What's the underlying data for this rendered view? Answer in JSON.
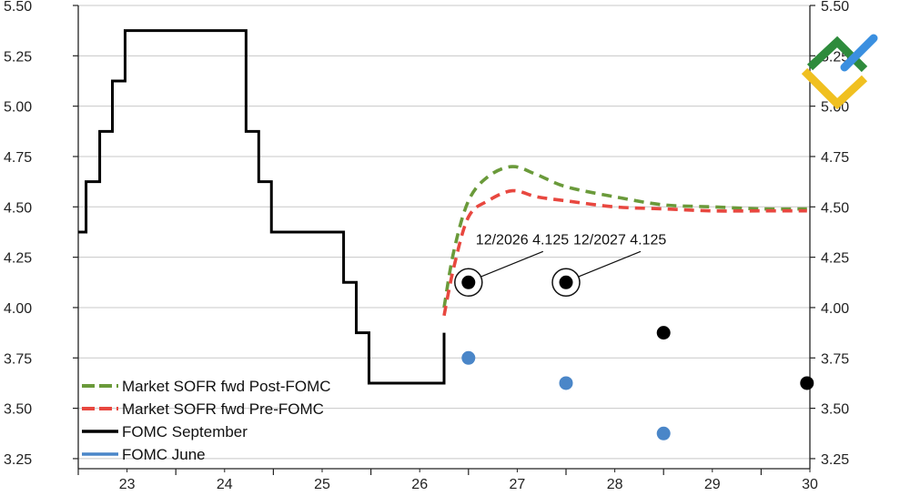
{
  "chart_data": {
    "type": "line",
    "ylim": [
      3.2,
      5.5
    ],
    "xlim": [
      22.5,
      30.0
    ],
    "y_ticks": [
      "3.25",
      "3.50",
      "3.75",
      "4.00",
      "4.25",
      "4.50",
      "4.75",
      "5.00",
      "5.25",
      "5.50"
    ],
    "x_ticks": [
      "23",
      "24",
      "25",
      "26",
      "27",
      "28",
      "29",
      "30"
    ],
    "grid": "horizontal",
    "legend_position": "bottom-left",
    "series": [
      {
        "name": "Market SOFR fwd Post-FOMC",
        "style": "dashed",
        "color": "#6a9a3a",
        "x": [
          26.25,
          26.35,
          26.5,
          26.7,
          26.95,
          27.2,
          27.5,
          28.0,
          28.5,
          29.0,
          29.5,
          29.97
        ],
        "y": [
          4.0,
          4.28,
          4.53,
          4.65,
          4.7,
          4.66,
          4.6,
          4.55,
          4.51,
          4.5,
          4.49,
          4.49
        ]
      },
      {
        "name": "Market SOFR fwd Pre-FOMC",
        "style": "dashed",
        "color": "#e8473f",
        "x": [
          26.25,
          26.35,
          26.5,
          26.7,
          26.95,
          27.2,
          27.5,
          28.0,
          28.5,
          29.0,
          29.5,
          29.97
        ],
        "y": [
          3.96,
          4.2,
          4.45,
          4.53,
          4.58,
          4.55,
          4.53,
          4.5,
          4.49,
          4.48,
          4.48,
          4.48
        ]
      },
      {
        "name": "FOMC September",
        "style": "step",
        "color": "#000000",
        "x": [
          22.5,
          22.58,
          22.58,
          22.72,
          22.72,
          22.85,
          22.85,
          22.98,
          22.98,
          23.07,
          23.07,
          24.22,
          24.22,
          24.35,
          24.35,
          24.48,
          24.48,
          25.22,
          25.22,
          25.35,
          25.35,
          25.48,
          25.48,
          26.25,
          26.25
        ],
        "y": [
          4.375,
          4.375,
          4.625,
          4.625,
          4.875,
          4.875,
          5.125,
          5.125,
          5.375,
          5.375,
          5.375,
          5.375,
          4.875,
          4.875,
          4.625,
          4.625,
          4.375,
          4.375,
          4.125,
          4.125,
          3.875,
          3.875,
          3.625,
          3.625,
          3.875
        ]
      },
      {
        "name": "FOMC June",
        "style": "line",
        "color": "#4a86c8",
        "x": [],
        "y": []
      }
    ],
    "dots_september": [
      {
        "x": 26.5,
        "y": 4.125
      },
      {
        "x": 27.5,
        "y": 4.125
      },
      {
        "x": 28.5,
        "y": 3.875
      },
      {
        "x": 29.97,
        "y": 3.625
      }
    ],
    "dots_june": [
      {
        "x": 26.5,
        "y": 3.75
      },
      {
        "x": 27.5,
        "y": 3.625
      },
      {
        "x": 28.5,
        "y": 3.375
      }
    ],
    "annotations": [
      {
        "text": "12/2026 4.125",
        "x": 26.5,
        "y": 4.125
      },
      {
        "text": "12/2027 4.125",
        "x": 27.5,
        "y": 4.125
      }
    ]
  },
  "logo": {
    "name": "brand-logo",
    "colors": [
      "#2e8b3c",
      "#f0c020",
      "#3a8fe0"
    ]
  }
}
